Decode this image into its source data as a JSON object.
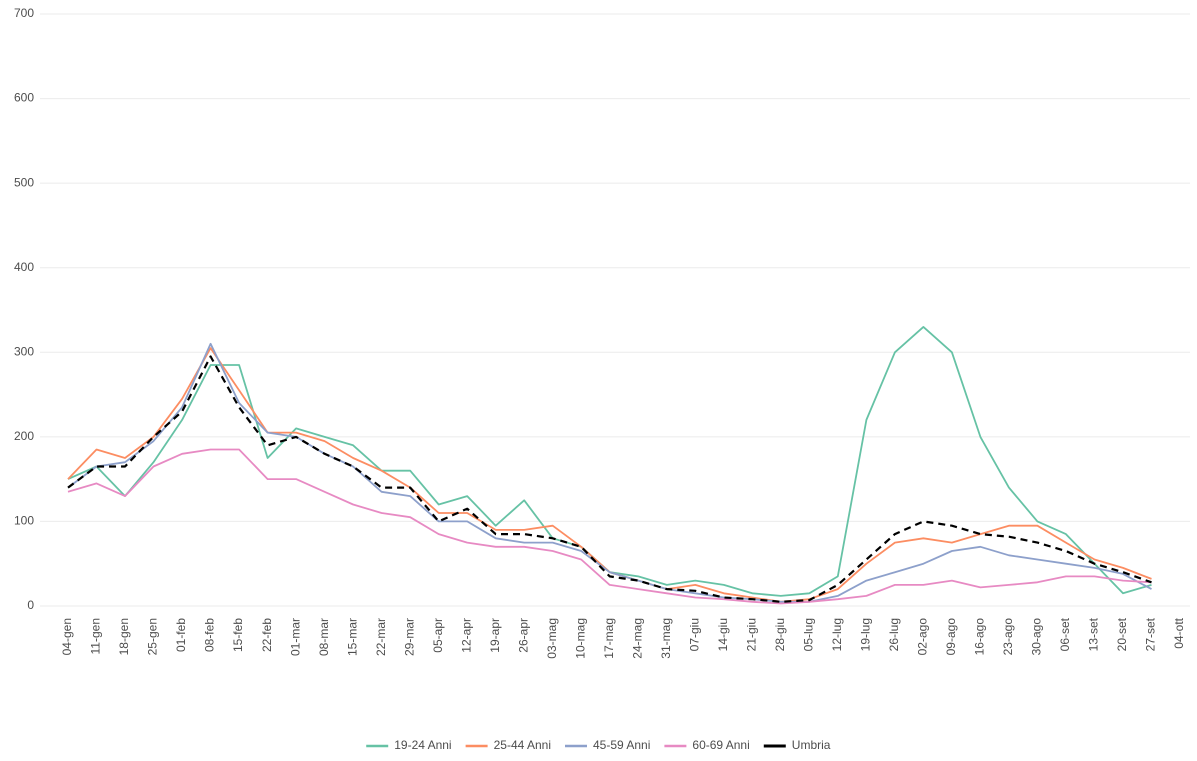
{
  "chart_data": {
    "type": "line",
    "categories": [
      "04-gen",
      "11-gen",
      "18-gen",
      "25-gen",
      "01-feb",
      "08-feb",
      "15-feb",
      "22-feb",
      "01-mar",
      "08-mar",
      "15-mar",
      "22-mar",
      "29-mar",
      "05-apr",
      "12-apr",
      "19-apr",
      "26-apr",
      "03-mag",
      "10-mag",
      "17-mag",
      "24-mag",
      "31-mag",
      "07-giu",
      "14-giu",
      "21-giu",
      "28-giu",
      "05-lug",
      "12-lug",
      "19-lug",
      "26-lug",
      "02-ago",
      "09-ago",
      "16-ago",
      "23-ago",
      "30-ago",
      "06-set",
      "13-set",
      "20-set",
      "27-set",
      "04-ott"
    ],
    "series": [
      {
        "name": "19-24 Anni",
        "color": "#66c2a5",
        "values": [
          150,
          165,
          130,
          170,
          220,
          285,
          285,
          175,
          210,
          200,
          190,
          160,
          160,
          120,
          130,
          95,
          125,
          80,
          70,
          40,
          35,
          25,
          30,
          25,
          15,
          12,
          15,
          35,
          220,
          300,
          330,
          300,
          200,
          140,
          100,
          85,
          50,
          15,
          25,
          null
        ]
      },
      {
        "name": "25-44 Anni",
        "color": "#fc8d62",
        "values": [
          150,
          185,
          175,
          200,
          245,
          305,
          255,
          205,
          205,
          195,
          175,
          160,
          140,
          110,
          110,
          90,
          90,
          95,
          70,
          40,
          30,
          20,
          25,
          15,
          10,
          5,
          8,
          20,
          50,
          75,
          80,
          75,
          85,
          95,
          95,
          75,
          55,
          45,
          32,
          null
        ]
      },
      {
        "name": "45-59 Anni",
        "color": "#8da0cb",
        "values": [
          140,
          165,
          170,
          195,
          235,
          310,
          240,
          205,
          200,
          180,
          165,
          135,
          130,
          100,
          100,
          80,
          75,
          75,
          65,
          40,
          30,
          20,
          15,
          10,
          8,
          5,
          5,
          12,
          30,
          40,
          50,
          65,
          70,
          60,
          55,
          50,
          45,
          38,
          20,
          null
        ]
      },
      {
        "name": "60-69 Anni",
        "color": "#e78ac3",
        "values": [
          135,
          145,
          130,
          165,
          180,
          185,
          185,
          150,
          150,
          135,
          120,
          110,
          105,
          85,
          75,
          70,
          70,
          65,
          55,
          25,
          20,
          15,
          10,
          8,
          5,
          3,
          5,
          8,
          12,
          25,
          25,
          30,
          22,
          25,
          28,
          35,
          35,
          30,
          28,
          null
        ]
      },
      {
        "name": "Umbria",
        "color": "#000000",
        "dashed": true,
        "values": [
          140,
          165,
          165,
          200,
          230,
          295,
          235,
          190,
          200,
          180,
          165,
          140,
          140,
          100,
          115,
          85,
          85,
          80,
          70,
          35,
          30,
          20,
          18,
          10,
          8,
          5,
          7,
          25,
          55,
          85,
          100,
          95,
          85,
          82,
          75,
          65,
          50,
          40,
          28,
          null
        ]
      }
    ],
    "ylim": [
      0,
      700
    ],
    "yticks": [
      0,
      100,
      200,
      300,
      400,
      500,
      600,
      700
    ],
    "grid": true,
    "legend": "bottom"
  }
}
